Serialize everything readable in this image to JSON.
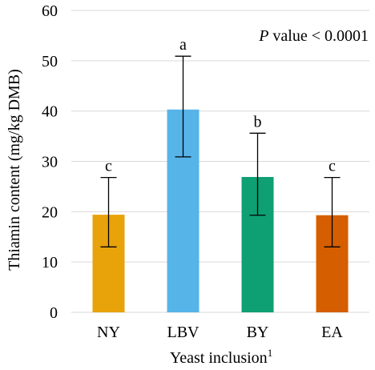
{
  "chart_data": {
    "type": "bar",
    "title": "",
    "xlabel": "Yeast inclusion",
    "xlabel_superscript": "1",
    "ylabel": "Thiamin content (mg/kg DMB)",
    "ylim": [
      0,
      60
    ],
    "yticks": [
      0,
      10,
      20,
      30,
      40,
      50,
      60
    ],
    "grid": true,
    "categories": [
      "NY",
      "LBV",
      "BY",
      "EA"
    ],
    "values": [
      19.4,
      40.3,
      26.9,
      19.3
    ],
    "error_low": [
      13.0,
      30.9,
      19.3,
      13.0
    ],
    "error_high": [
      26.8,
      50.9,
      35.6,
      26.8
    ],
    "significance_letters": [
      "c",
      "a",
      "b",
      "c"
    ],
    "colors": [
      "#E8A20A",
      "#56B4E9",
      "#0E9F73",
      "#D55E00"
    ],
    "annotation": {
      "p_symbol": "P",
      "p_text": " value < 0.0001"
    }
  }
}
